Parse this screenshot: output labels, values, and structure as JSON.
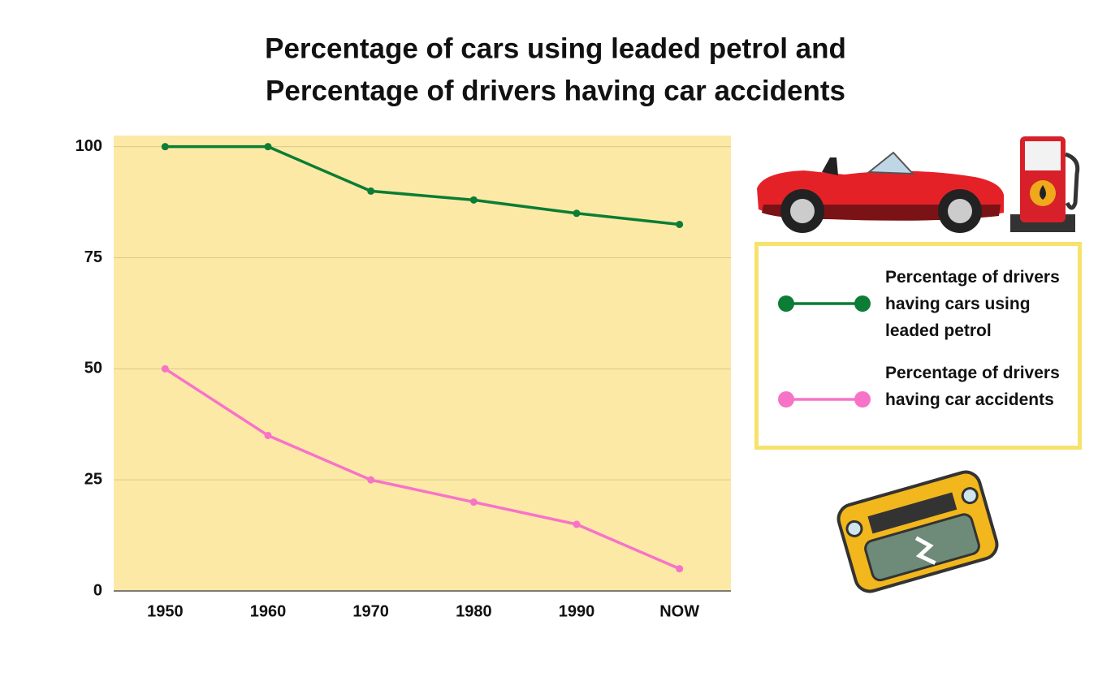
{
  "chart_data": {
    "type": "line",
    "title": [
      "Percentage of cars using leaded petrol and",
      "Percentage of drivers having car accidents"
    ],
    "categories": [
      "1950",
      "1960",
      "1970",
      "1980",
      "1990",
      "NOW"
    ],
    "series": [
      {
        "name": "Percentage of drivers having cars using leaded petrol",
        "color": "#0b7d34",
        "values": [
          100,
          100,
          90,
          88,
          85,
          82.5
        ]
      },
      {
        "name": "Percentage of drivers having car accidents",
        "color": "#f773c8",
        "values": [
          50,
          35,
          25,
          20,
          15,
          5
        ]
      }
    ],
    "ylim": [
      0,
      102.5
    ],
    "yticks": [
      0,
      25,
      50,
      75,
      100
    ],
    "grid": true,
    "plot_background": "#fde9a6"
  }
}
